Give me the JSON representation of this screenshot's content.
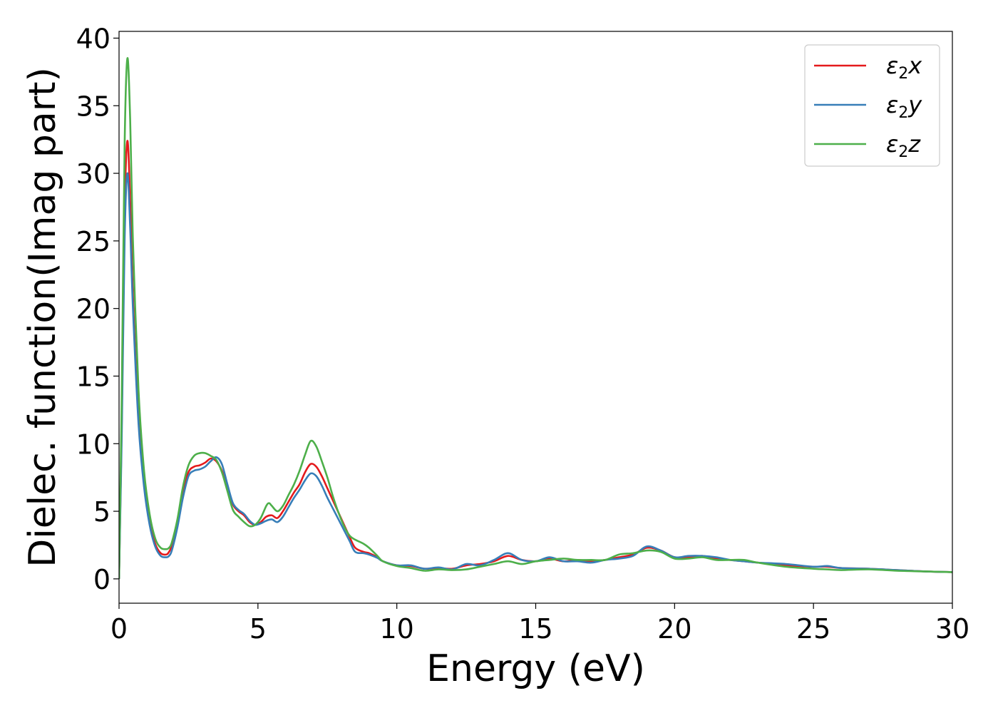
{
  "chart_data": {
    "type": "line",
    "title": "",
    "xlabel": "Energy (eV)",
    "ylabel": "Dielec. function(Imag part)",
    "xlim": [
      0,
      30
    ],
    "ylim": [
      -1.8,
      40.5
    ],
    "xticks": [
      0,
      5,
      10,
      15,
      20,
      25,
      30
    ],
    "yticks": [
      0,
      5,
      10,
      15,
      20,
      25,
      30,
      35,
      40
    ],
    "grid": false,
    "legend_position": "top-right",
    "series": [
      {
        "name": "ε2x",
        "legend": {
          "base": "ε",
          "sub": "2",
          "suffix": "x"
        },
        "color": "#e41a1c",
        "x": [
          0,
          0.1,
          0.2,
          0.3,
          0.4,
          0.5,
          0.7,
          0.9,
          1.1,
          1.3,
          1.5,
          1.7,
          1.8,
          1.9,
          2.1,
          2.3,
          2.5,
          2.7,
          2.9,
          3.1,
          3.3,
          3.5,
          3.7,
          3.9,
          4.1,
          4.3,
          4.5,
          4.7,
          4.9,
          5.1,
          5.3,
          5.5,
          5.7,
          5.9,
          6.1,
          6.3,
          6.5,
          6.7,
          6.9,
          7.1,
          7.3,
          7.5,
          7.7,
          7.9,
          8.1,
          8.3,
          8.5,
          8.8,
          9.0,
          9.3,
          9.5,
          10.0,
          10.5,
          11.0,
          11.5,
          12.0,
          12.5,
          13.0,
          13.5,
          14.0,
          14.5,
          15.0,
          15.5,
          16.0,
          16.5,
          17.0,
          17.5,
          18.0,
          18.5,
          19.0,
          19.5,
          20.0,
          20.5,
          21.0,
          21.5,
          22.0,
          22.5,
          23.0,
          24.0,
          25.0,
          25.5,
          26.0,
          27.0,
          28.0,
          29.0,
          30.0
        ],
        "y": [
          0,
          12,
          27,
          32.4,
          28,
          21,
          12,
          7,
          4.2,
          2.6,
          1.9,
          1.8,
          2.0,
          2.5,
          4.3,
          6.5,
          7.9,
          8.3,
          8.4,
          8.6,
          8.9,
          8.7,
          8.0,
          6.8,
          5.5,
          5.0,
          4.7,
          4.2,
          4.0,
          4.2,
          4.6,
          4.7,
          4.5,
          5.0,
          5.7,
          6.4,
          7.0,
          7.9,
          8.5,
          8.3,
          7.6,
          6.7,
          5.8,
          4.9,
          4.0,
          3.1,
          2.3,
          2.0,
          1.9,
          1.6,
          1.3,
          1.0,
          0.95,
          0.75,
          0.8,
          0.75,
          1.0,
          1.1,
          1.3,
          1.7,
          1.4,
          1.3,
          1.5,
          1.3,
          1.4,
          1.3,
          1.4,
          1.6,
          1.8,
          2.3,
          2.1,
          1.6,
          1.6,
          1.7,
          1.5,
          1.4,
          1.3,
          1.2,
          1.0,
          0.9,
          0.9,
          0.8,
          0.75,
          0.65,
          0.55,
          0.5
        ]
      },
      {
        "name": "ε2y",
        "legend": {
          "base": "ε",
          "sub": "2",
          "suffix": "y"
        },
        "color": "#377eb8",
        "x": [
          0,
          0.1,
          0.2,
          0.3,
          0.4,
          0.5,
          0.7,
          0.9,
          1.1,
          1.3,
          1.5,
          1.7,
          1.8,
          1.9,
          2.1,
          2.3,
          2.5,
          2.7,
          2.9,
          3.1,
          3.3,
          3.5,
          3.7,
          3.9,
          4.1,
          4.3,
          4.5,
          4.7,
          4.9,
          5.1,
          5.3,
          5.5,
          5.7,
          5.9,
          6.1,
          6.3,
          6.5,
          6.7,
          6.9,
          7.1,
          7.3,
          7.5,
          7.7,
          7.9,
          8.1,
          8.3,
          8.5,
          8.8,
          9.0,
          9.3,
          9.5,
          10.0,
          10.5,
          11.0,
          11.5,
          12.0,
          12.5,
          13.0,
          13.5,
          14.0,
          14.5,
          15.0,
          15.5,
          16.0,
          16.5,
          17.0,
          17.5,
          18.0,
          18.5,
          19.0,
          19.5,
          20.0,
          20.5,
          21.0,
          21.5,
          22.0,
          22.5,
          23.0,
          24.0,
          25.0,
          25.5,
          26.0,
          27.0,
          28.0,
          29.0,
          30.0
        ],
        "y": [
          0,
          11,
          25,
          30.0,
          26,
          20,
          11.5,
          6.8,
          4.0,
          2.4,
          1.7,
          1.6,
          1.7,
          2.1,
          3.8,
          6.0,
          7.6,
          8.0,
          8.1,
          8.3,
          8.7,
          9.0,
          8.5,
          7.0,
          5.6,
          5.1,
          4.8,
          4.3,
          4.0,
          4.1,
          4.3,
          4.4,
          4.2,
          4.6,
          5.3,
          6.0,
          6.6,
          7.3,
          7.8,
          7.6,
          6.9,
          6.0,
          5.2,
          4.4,
          3.6,
          2.8,
          2.0,
          1.9,
          1.8,
          1.55,
          1.3,
          1.0,
          1.0,
          0.75,
          0.85,
          0.7,
          1.1,
          1.0,
          1.4,
          1.9,
          1.4,
          1.3,
          1.6,
          1.3,
          1.3,
          1.2,
          1.4,
          1.5,
          1.7,
          2.4,
          2.1,
          1.6,
          1.7,
          1.7,
          1.6,
          1.4,
          1.3,
          1.2,
          1.1,
          0.9,
          0.95,
          0.8,
          0.75,
          0.65,
          0.55,
          0.5
        ]
      },
      {
        "name": "ε2z",
        "legend": {
          "base": "ε",
          "sub": "2",
          "suffix": "z"
        },
        "color": "#4daf4a",
        "x": [
          0,
          0.1,
          0.2,
          0.3,
          0.4,
          0.5,
          0.7,
          0.9,
          1.1,
          1.3,
          1.5,
          1.7,
          1.8,
          1.9,
          2.1,
          2.3,
          2.5,
          2.7,
          2.9,
          3.1,
          3.3,
          3.5,
          3.7,
          3.9,
          4.1,
          4.3,
          4.5,
          4.7,
          4.9,
          5.1,
          5.3,
          5.4,
          5.5,
          5.7,
          5.9,
          6.1,
          6.3,
          6.5,
          6.7,
          6.9,
          7.1,
          7.3,
          7.5,
          7.7,
          7.9,
          8.1,
          8.3,
          8.5,
          8.8,
          9.0,
          9.3,
          9.5,
          10.0,
          10.5,
          11.0,
          11.5,
          12.0,
          12.5,
          13.0,
          13.5,
          14.0,
          14.5,
          15.0,
          15.5,
          16.0,
          16.5,
          17.0,
          17.5,
          18.0,
          18.5,
          19.0,
          19.5,
          20.0,
          20.5,
          21.0,
          21.5,
          22.0,
          22.5,
          23.0,
          24.0,
          25.0,
          25.5,
          26.0,
          27.0,
          28.0,
          29.0,
          30.0
        ],
        "y": [
          0,
          14,
          32,
          38.5,
          34,
          25,
          14,
          8,
          4.8,
          3.0,
          2.3,
          2.2,
          2.3,
          2.7,
          4.4,
          6.8,
          8.4,
          9.1,
          9.3,
          9.3,
          9.1,
          8.8,
          7.9,
          6.5,
          5.1,
          4.6,
          4.2,
          3.9,
          4.0,
          4.5,
          5.4,
          5.6,
          5.4,
          5.0,
          5.4,
          6.2,
          7.0,
          8.0,
          9.2,
          10.2,
          9.8,
          8.7,
          7.5,
          6.1,
          4.9,
          3.9,
          3.2,
          2.9,
          2.6,
          2.3,
          1.7,
          1.3,
          0.95,
          0.8,
          0.6,
          0.7,
          0.65,
          0.7,
          0.9,
          1.1,
          1.3,
          1.1,
          1.3,
          1.4,
          1.5,
          1.4,
          1.4,
          1.4,
          1.8,
          1.9,
          2.1,
          2.0,
          1.5,
          1.5,
          1.6,
          1.4,
          1.4,
          1.4,
          1.2,
          0.9,
          0.75,
          0.7,
          0.65,
          0.7,
          0.6,
          0.55,
          0.5
        ]
      }
    ]
  }
}
